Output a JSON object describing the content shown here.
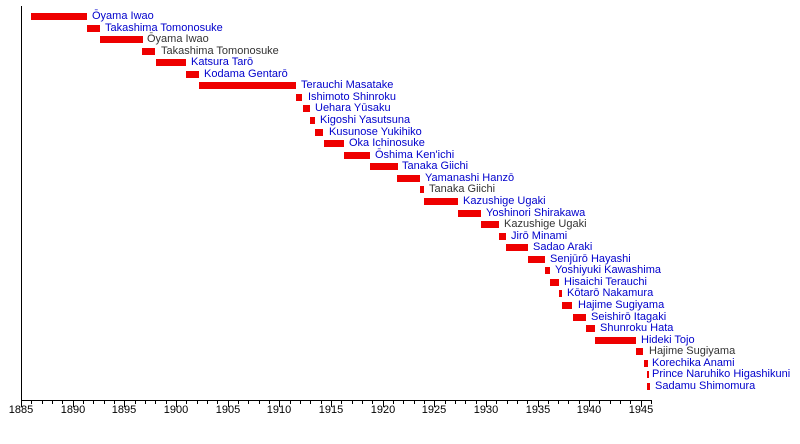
{
  "chart_data": {
    "type": "bar",
    "subtype": "horizontal-timeline-gantt",
    "title": "",
    "xlabel": "",
    "ylabel": "",
    "x_axis": {
      "min": 1885,
      "max": 1946,
      "major_tick_years": [
        1885,
        1890,
        1895,
        1900,
        1905,
        1910,
        1915,
        1920,
        1925,
        1930,
        1935,
        1940,
        1945
      ],
      "minor_tick_interval_years": 1,
      "grid": false
    },
    "legend": "none",
    "colors": {
      "bar": "#EE0000",
      "link_label": "#0000CC",
      "plain_label": "#333333",
      "axis": "#000000",
      "background": "#FFFFFF"
    },
    "entries": [
      {
        "name": "Ōyama Iwao",
        "start": 1885.97,
        "end": 1891.38,
        "linked": true
      },
      {
        "name": "Takashima Tomonosuke",
        "start": 1891.38,
        "end": 1892.6,
        "linked": true
      },
      {
        "name": "Ōyama Iwao",
        "start": 1892.6,
        "end": 1896.75,
        "linked": false
      },
      {
        "name": "Takashima Tomonosuke",
        "start": 1896.75,
        "end": 1898.03,
        "linked": false
      },
      {
        "name": "Katsura Tarō",
        "start": 1898.03,
        "end": 1900.98,
        "linked": true
      },
      {
        "name": "Kodama Gentarō",
        "start": 1900.98,
        "end": 1902.23,
        "linked": true
      },
      {
        "name": "Terauchi Masatake",
        "start": 1902.23,
        "end": 1911.66,
        "linked": true
      },
      {
        "name": "Ishimoto Shinroku",
        "start": 1911.66,
        "end": 1912.26,
        "linked": true
      },
      {
        "name": "Uehara Yūsaku",
        "start": 1912.26,
        "end": 1912.97,
        "linked": true
      },
      {
        "name": "Kigoshi Yasutsuna",
        "start": 1912.97,
        "end": 1913.48,
        "linked": true
      },
      {
        "name": "Kusunose Yukihiko",
        "start": 1913.48,
        "end": 1914.29,
        "linked": true
      },
      {
        "name": "Oka Ichinosuke",
        "start": 1914.29,
        "end": 1916.24,
        "linked": true
      },
      {
        "name": "Ōshima Ken'ichi",
        "start": 1916.24,
        "end": 1918.74,
        "linked": true
      },
      {
        "name": "Tanaka Giichi",
        "start": 1918.74,
        "end": 1921.44,
        "linked": true
      },
      {
        "name": "Yamanashi Hanzō",
        "start": 1921.44,
        "end": 1923.67,
        "linked": true
      },
      {
        "name": "Tanaka Giichi",
        "start": 1923.67,
        "end": 1924.02,
        "linked": false
      },
      {
        "name": "Kazushige Ugaki",
        "start": 1924.02,
        "end": 1927.3,
        "linked": true
      },
      {
        "name": "Yoshinori Shirakawa",
        "start": 1927.3,
        "end": 1929.5,
        "linked": true
      },
      {
        "name": "Kazushige Ugaki",
        "start": 1929.5,
        "end": 1931.28,
        "linked": false
      },
      {
        "name": "Jirō Minami",
        "start": 1931.28,
        "end": 1931.95,
        "linked": true
      },
      {
        "name": "Sadao Araki",
        "start": 1931.95,
        "end": 1934.06,
        "linked": true
      },
      {
        "name": "Senjūrō Hayashi",
        "start": 1934.06,
        "end": 1935.68,
        "linked": true
      },
      {
        "name": "Yoshiyuki Kawashima",
        "start": 1935.68,
        "end": 1936.19,
        "linked": true
      },
      {
        "name": "Hisaichi Terauchi",
        "start": 1936.19,
        "end": 1937.09,
        "linked": true
      },
      {
        "name": "Kōtarō Nakamura",
        "start": 1937.09,
        "end": 1937.42,
        "linked": true
      },
      {
        "name": "Hajime Sugiyama",
        "start": 1937.42,
        "end": 1938.42,
        "linked": true
      },
      {
        "name": "Seishirō Itagaki",
        "start": 1938.42,
        "end": 1939.66,
        "linked": true
      },
      {
        "name": "Shunroku Hata",
        "start": 1939.66,
        "end": 1940.55,
        "linked": true
      },
      {
        "name": "Hideki Tojo",
        "start": 1940.55,
        "end": 1944.55,
        "linked": true
      },
      {
        "name": "Hajime Sugiyama",
        "start": 1944.55,
        "end": 1945.27,
        "linked": false
      },
      {
        "name": "Korechika Anami",
        "start": 1945.27,
        "end": 1945.62,
        "linked": true
      },
      {
        "name": "Prince Naruhiko Higashikuni",
        "start": 1945.62,
        "end": 1945.64,
        "linked": true
      },
      {
        "name": "Sadamu Shimomura",
        "start": 1945.64,
        "end": 1945.92,
        "linked": true
      }
    ]
  }
}
